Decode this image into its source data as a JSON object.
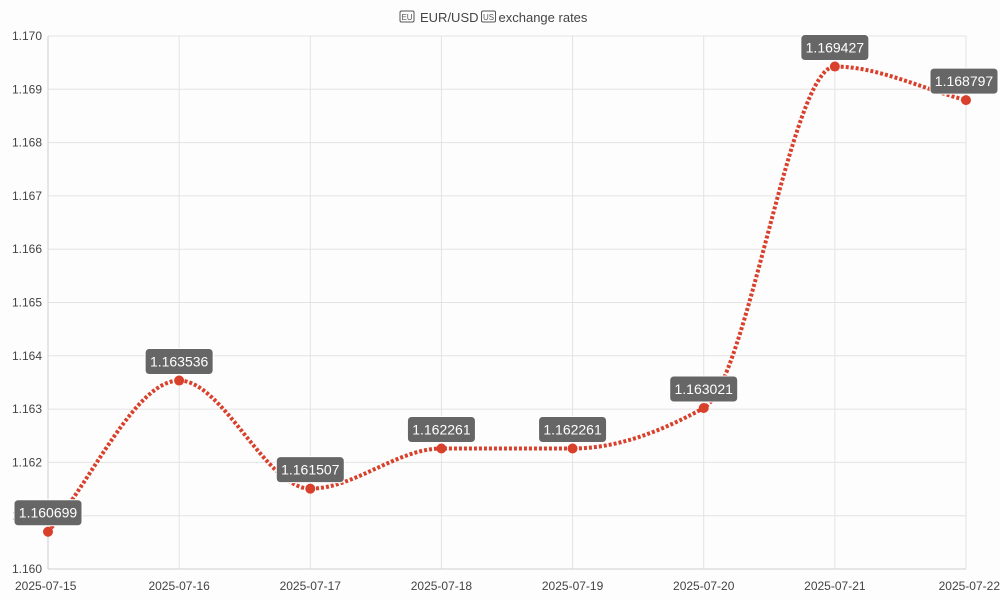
{
  "chart_data": {
    "type": "line",
    "title": "EUR/USD exchange rates",
    "title_icons": [
      "flag-eu-icon",
      "flag-us-icon"
    ],
    "x": [
      "2025-07-15",
      "2025-07-16",
      "2025-07-17",
      "2025-07-18",
      "2025-07-19",
      "2025-07-20",
      "2025-07-21",
      "2025-07-22"
    ],
    "series": [
      {
        "values": [
          1.160699,
          1.163536,
          1.161507,
          1.162261,
          1.162261,
          1.163021,
          1.169427,
          1.168797
        ],
        "labels": [
          "1.160699",
          "1.163536",
          "1.161507",
          "1.162261",
          "1.162261",
          "1.163021",
          "1.169427",
          "1.168797"
        ],
        "color": "#d9402b",
        "line_style": "dotted",
        "smooth": true
      }
    ],
    "y_ticks": [
      "1.160",
      "1.161",
      "1.162",
      "1.163",
      "1.164",
      "1.165",
      "1.166",
      "1.167",
      "1.168",
      "1.169",
      "1.170"
    ],
    "ylim": [
      1.16,
      1.17
    ],
    "grid": true,
    "legend": "none",
    "label_box_color": "#666666"
  }
}
